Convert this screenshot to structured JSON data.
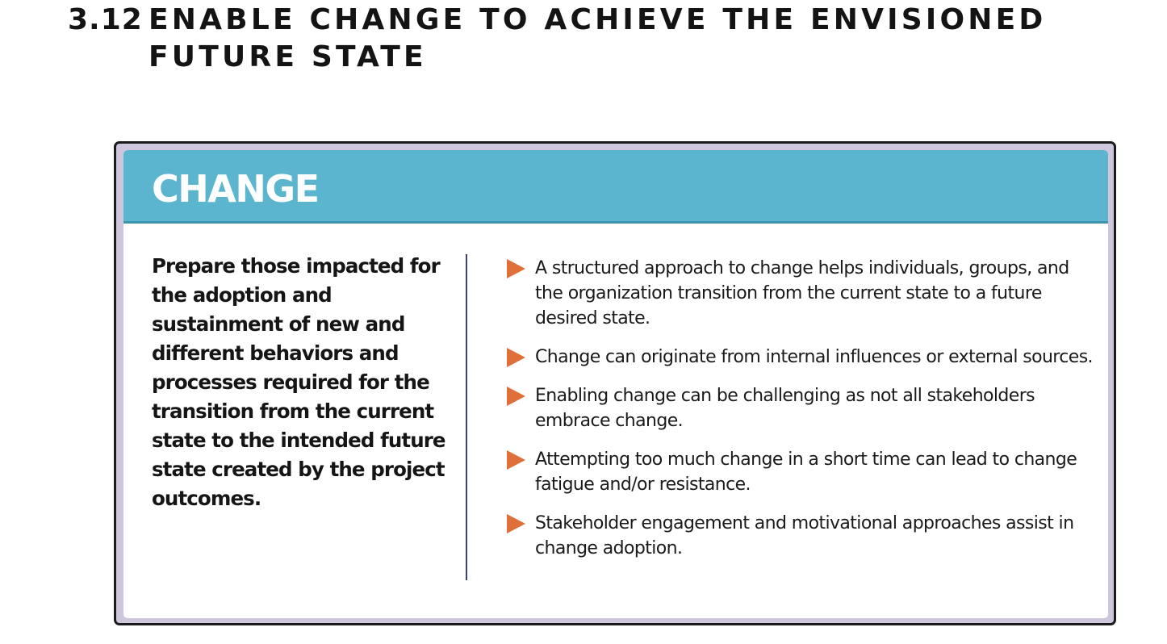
{
  "section": {
    "number": "3.12",
    "title_line1": "ENABLE CHANGE TO ACHIEVE THE ENVISIONED",
    "title_line2": "FUTURE STATE"
  },
  "card": {
    "banner_title": "CHANGE",
    "summary": "Prepare those impacted for the adoption and sustainment of new and different behaviors and processes required for the transition from the current state to the intended future state created by the project outcomes.",
    "bullets": [
      "A structured approach to change helps individuals, groups, and the organization transition from the current state to a future desired state.",
      "Change can originate from internal influences or external sources.",
      "Enabling change can be challenging as not all stakeholders embrace change.",
      "Attempting too much change in a short time can lead to change fatigue and/or resistance.",
      "Stakeholder engagement and motivational approaches assist in change adoption."
    ],
    "bullet_icon": "right-triangle-arrow"
  },
  "colors": {
    "banner": "#5cb5cf",
    "frame": "#cdc6dc",
    "bullet_arrow": "#e0703a",
    "divider": "#3c3f7a"
  }
}
